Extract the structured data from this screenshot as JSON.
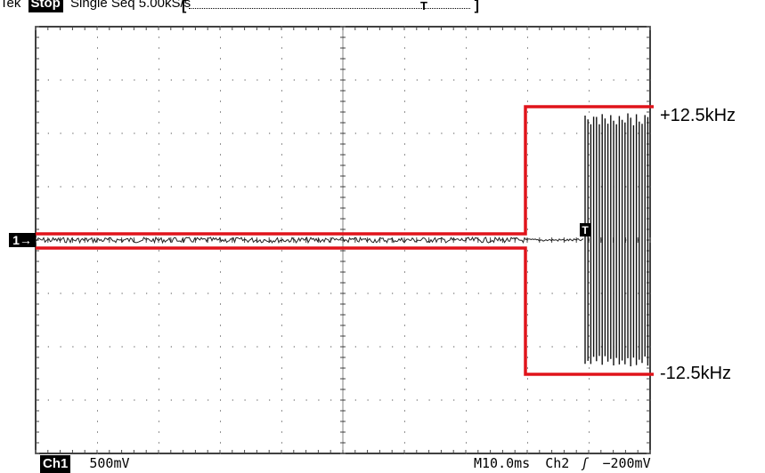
{
  "status": {
    "prefix": "Tek",
    "run_state": "Stop",
    "mode": "Single Seq",
    "sample_rate": "5.00kS/s"
  },
  "record_bar": {
    "trigger_marker": "T"
  },
  "channel_marker": "1→",
  "trigger_marker": "T",
  "readout": {
    "channel": "Ch1",
    "volts_per_div": "500mV",
    "time_per_div": "M10.0ms",
    "trigger_source": "Ch2",
    "trigger_slope_icon": "rising-edge-icon",
    "trigger_slope_glyph": "ʃ",
    "trigger_level": "−200mV"
  },
  "annotations": {
    "upper_freq": "+12.5kHz",
    "lower_freq": "-12.5kHz",
    "outline_color": "#e0141b"
  }
}
